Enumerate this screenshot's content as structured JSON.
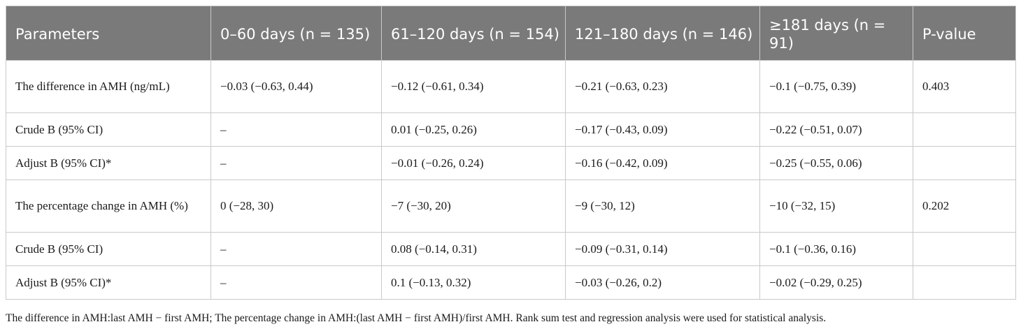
{
  "table": {
    "headers": [
      "Parameters",
      "0–60 days (n = 135)",
      "61–120 days (n = 154)",
      "121–180 days (n = 146)",
      "≥181 days (n = 91)",
      "P-value"
    ],
    "rows": [
      [
        "The difference in AMH (ng/mL)",
        "−0.03 (−0.63, 0.44)",
        "−0.12 (−0.61, 0.34)",
        "−0.21 (−0.63, 0.23)",
        "−0.1 (−0.75, 0.39)",
        "0.403"
      ],
      [
        "Crude B (95% CI)",
        "–",
        "0.01 (−0.25, 0.26)",
        "−0.17 (−0.43, 0.09)",
        "−0.22 (−0.51, 0.07)",
        ""
      ],
      [
        "Adjust B (95% CI)*",
        "–",
        "−0.01 (−0.26, 0.24)",
        "−0.16 (−0.42, 0.09)",
        "−0.25 (−0.55, 0.06)",
        ""
      ],
      [
        "The percentage change in AMH (%)",
        "0 (−28, 30)",
        "−7 (−30, 20)",
        "−9 (−30, 12)",
        "−10 (−32, 15)",
        "0.202"
      ],
      [
        "Crude B (95% CI)",
        "–",
        "0.08 (−0.14, 0.31)",
        "−0.09 (−0.31, 0.14)",
        "−0.1 (−0.36, 0.16)",
        ""
      ],
      [
        "Adjust B (95% CI)*",
        "–",
        "0.1 (−0.13, 0.32)",
        "−0.03 (−0.26, 0.2)",
        "−0.02 (−0.29, 0.25)",
        ""
      ]
    ]
  },
  "footnote": "The difference in AMH:last AMH − first AMH; The percentage change in AMH:(last AMH − first AMH)/first AMH. Rank sum test and regression analysis were used for statistical analysis."
}
